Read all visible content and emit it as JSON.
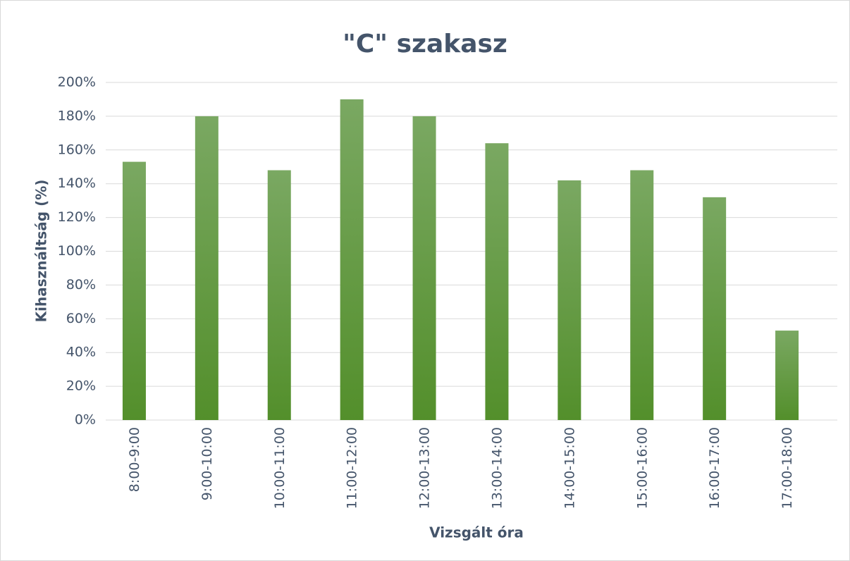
{
  "chart_data": {
    "type": "bar",
    "title": "\"C\" szakasz",
    "x_label": "Vizsgált óra",
    "y_label": "Kihasználtság (%)",
    "categories": [
      "8:00-9:00",
      "9:00-10:00",
      "10:00-11:00",
      "11:00-12:00",
      "12:00-13:00",
      "13:00-14:00",
      "14:00-15:00",
      "15:00-16:00",
      "16:00-17:00",
      "17:00-18:00"
    ],
    "values": [
      153,
      180,
      148,
      190,
      180,
      164,
      142,
      148,
      132,
      53
    ],
    "color": "#5f9a3a",
    "ylim": [
      0,
      200
    ],
    "yticks": [
      {
        "value": 0,
        "label": "0%"
      },
      {
        "value": 20,
        "label": "20%"
      },
      {
        "value": 40,
        "label": "40%"
      },
      {
        "value": 60,
        "label": "60%"
      },
      {
        "value": 80,
        "label": "80%"
      },
      {
        "value": 100,
        "label": "100%"
      },
      {
        "value": 120,
        "label": "120%"
      },
      {
        "value": 140,
        "label": "140%"
      },
      {
        "value": 160,
        "label": "160%"
      },
      {
        "value": 180,
        "label": "180%"
      },
      {
        "value": 200,
        "label": "200%"
      }
    ],
    "grid": true
  }
}
